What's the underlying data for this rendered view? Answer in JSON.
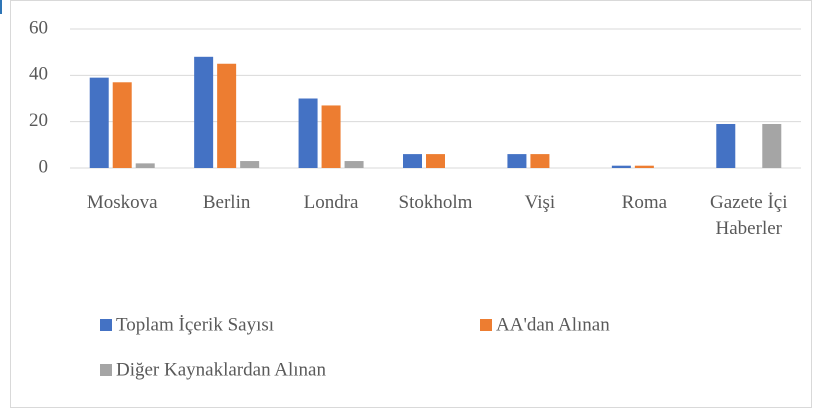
{
  "chart_data": {
    "type": "bar",
    "categories": [
      "Moskova",
      "Berlin",
      "Londra",
      "Stokholm",
      "Vişi",
      "Roma",
      "Gazete İçi Haberler"
    ],
    "series": [
      {
        "name": "Toplam İçerik Sayısı",
        "color": "#4472c4",
        "values": [
          39,
          48,
          30,
          6,
          6,
          1,
          19
        ]
      },
      {
        "name": "AA'dan Alınan",
        "color": "#ed7d31",
        "values": [
          37,
          45,
          27,
          6,
          6,
          1,
          0
        ]
      },
      {
        "name": "Diğer Kaynaklardan Alınan",
        "color": "#a5a5a5",
        "values": [
          2,
          3,
          3,
          0,
          0,
          0,
          19
        ]
      }
    ],
    "ylim": [
      0,
      60
    ],
    "yticks": [
      0,
      20,
      40,
      60
    ],
    "grid": true,
    "legend": "bottom"
  }
}
